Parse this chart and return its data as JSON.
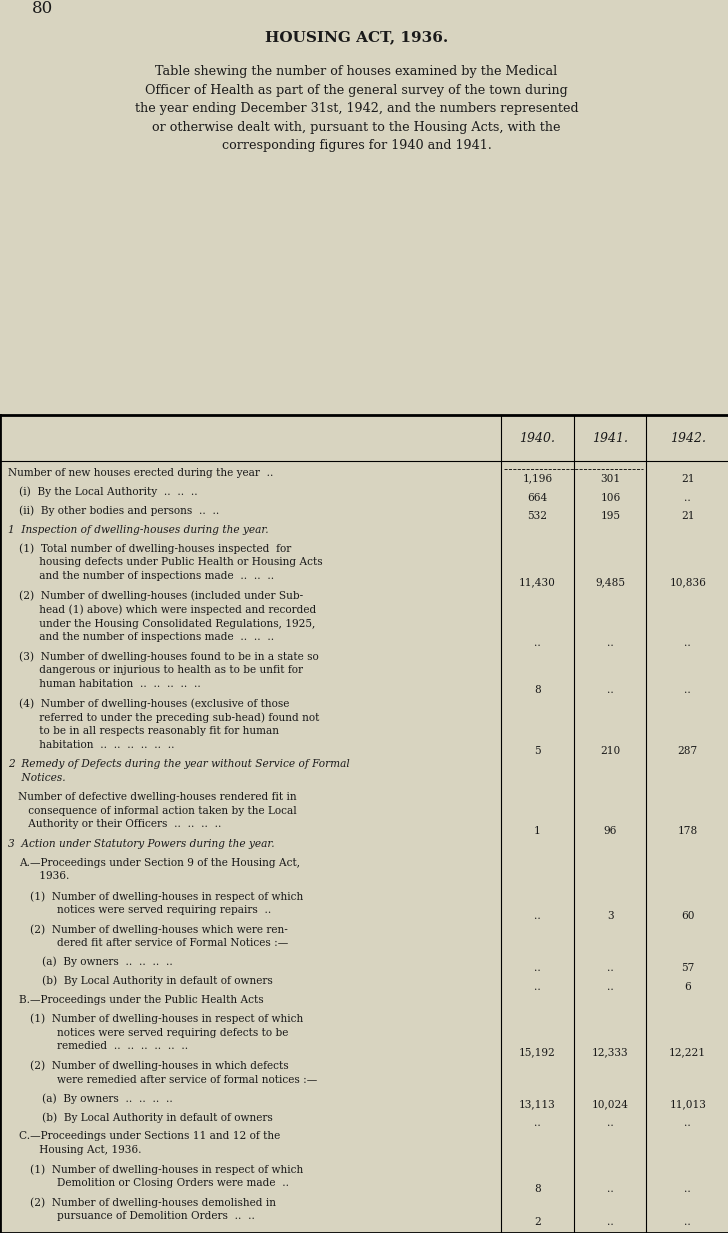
{
  "page_number": "80",
  "title": "HOUSING ACT, 1936.",
  "subtitle": "Table shewing the number of houses examined by the Medical\nOfficer of Health as part of the general survey of the town during\nthe year ending December 31st, 1942, and the numbers represented\nor otherwise dealt with, pursuant to the Housing Acts, with the\ncorresponding figures for 1940 and 1941.",
  "bg_color": "#d8d4c0",
  "text_color": "#1a1a1a",
  "col_headers": [
    "1940.",
    "1941.",
    "1942."
  ],
  "rows": [
    {
      "indent": 0,
      "style": "normal",
      "text": "Number of new houses erected during the year  ..",
      "v1940": "1,196",
      "v1941": "301",
      "v1942": "21"
    },
    {
      "indent": 1,
      "style": "normal",
      "text": "(i)  By the Local Authority  ..  ..  ..",
      "v1940": "664",
      "v1941": "106",
      "v1942": ".."
    },
    {
      "indent": 1,
      "style": "normal",
      "text": "(ii)  By other bodies and persons  ..  ..",
      "v1940": "532",
      "v1941": "195",
      "v1942": "21"
    },
    {
      "indent": 0,
      "style": "italic_heading",
      "text": "1  Inspection of dwelling-houses during the year.",
      "v1940": "",
      "v1941": "",
      "v1942": ""
    },
    {
      "indent": 1,
      "style": "normal",
      "text": "(1)  Total number of dwelling-houses inspected  for\n      housing defects under Public Health or Housing Acts\n      and the number of inspections made  ..  ..  ..",
      "v1940": "11,430",
      "v1941": "9,485",
      "v1942": "10,836"
    },
    {
      "indent": 1,
      "style": "normal",
      "text": "(2)  Number of dwelling-houses (included under Sub-\n      head (1) above) which were inspected and recorded\n      under the Housing Consolidated Regulations, 1925,\n      and the number of inspections made  ..  ..  ..",
      "v1940": "..",
      "v1941": "..",
      "v1942": ".."
    },
    {
      "indent": 1,
      "style": "normal",
      "text": "(3)  Number of dwelling-houses found to be in a state so\n      dangerous or injurious to health as to be unfit for\n      human habitation  ..  ..  ..  ..  ..",
      "v1940": "8",
      "v1941": "..",
      "v1942": ".."
    },
    {
      "indent": 1,
      "style": "normal",
      "text": "(4)  Number of dwelling-houses (exclusive of those\n      referred to under the preceding sub-head) found not\n      to be in all respects reasonably fit for human\n      habitation  ..  ..  ..  ..  ..  ..",
      "v1940": "5",
      "v1941": "210",
      "v1942": "287"
    },
    {
      "indent": 0,
      "style": "italic_heading",
      "text": "2  Remedy of Defects during the year without Service of Formal\n    Notices.",
      "v1940": "",
      "v1941": "",
      "v1942": ""
    },
    {
      "indent": 0,
      "style": "normal",
      "text": "   Number of defective dwelling-houses rendered fit in\n      consequence of informal action taken by the Local\n      Authority or their Officers  ..  ..  ..  ..",
      "v1940": "1",
      "v1941": "96",
      "v1942": "178"
    },
    {
      "indent": 0,
      "style": "italic_heading",
      "text": "3  Action under Statutory Powers during the year.",
      "v1940": "",
      "v1941": "",
      "v1942": ""
    },
    {
      "indent": 1,
      "style": "normal",
      "text": "A.—Proceedings under Section 9 of the Housing Act,\n      1936.",
      "v1940": "",
      "v1941": "",
      "v1942": ""
    },
    {
      "indent": 2,
      "style": "normal",
      "text": "(1)  Number of dwelling-houses in respect of which\n        notices were served requiring repairs  ..",
      "v1940": "..",
      "v1941": "3",
      "v1942": "60"
    },
    {
      "indent": 2,
      "style": "normal",
      "text": "(2)  Number of dwelling-houses which were ren-\n        dered fit after service of Formal Notices :—",
      "v1940": "",
      "v1941": "",
      "v1942": ""
    },
    {
      "indent": 3,
      "style": "normal",
      "text": "(a)  By owners  ..  ..  ..  ..",
      "v1940": "..",
      "v1941": "..",
      "v1942": "57"
    },
    {
      "indent": 3,
      "style": "normal",
      "text": "(b)  By Local Authority in default of owners",
      "v1940": "..",
      "v1941": "..",
      "v1942": "6"
    },
    {
      "indent": 1,
      "style": "normal",
      "text": "B.—Proceedings under the Public Health Acts",
      "v1940": "",
      "v1941": "",
      "v1942": ""
    },
    {
      "indent": 2,
      "style": "normal",
      "text": "(1)  Number of dwelling-houses in respect of which\n        notices were served requiring defects to be\n        remedied  ..  ..  ..  ..  ..  ..",
      "v1940": "15,192",
      "v1941": "12,333",
      "v1942": "12,221"
    },
    {
      "indent": 2,
      "style": "normal",
      "text": "(2)  Number of dwelling-houses in which defects\n        were remedied after service of formal notices :—",
      "v1940": "",
      "v1941": "",
      "v1942": ""
    },
    {
      "indent": 3,
      "style": "normal",
      "text": "(a)  By owners  ..  ..  ..  ..",
      "v1940": "13,113",
      "v1941": "10,024",
      "v1942": "11,013"
    },
    {
      "indent": 3,
      "style": "normal",
      "text": "(b)  By Local Authority in default of owners",
      "v1940": "..",
      "v1941": "..",
      "v1942": ".."
    },
    {
      "indent": 1,
      "style": "normal",
      "text": "C.—Proceedings under Sections 11 and 12 of the\n      Housing Act, 1936.",
      "v1940": "",
      "v1941": "",
      "v1942": ""
    },
    {
      "indent": 2,
      "style": "normal",
      "text": "(1)  Number of dwelling-houses in respect of which\n        Demolition or Closing Orders were made  ..",
      "v1940": "8",
      "v1941": "..",
      "v1942": ".."
    },
    {
      "indent": 2,
      "style": "normal",
      "text": "(2)  Number of dwelling-houses demolished in\n        pursuance of Demolition Orders  ..  ..",
      "v1940": "2",
      "v1941": "..",
      "v1942": ".."
    }
  ]
}
